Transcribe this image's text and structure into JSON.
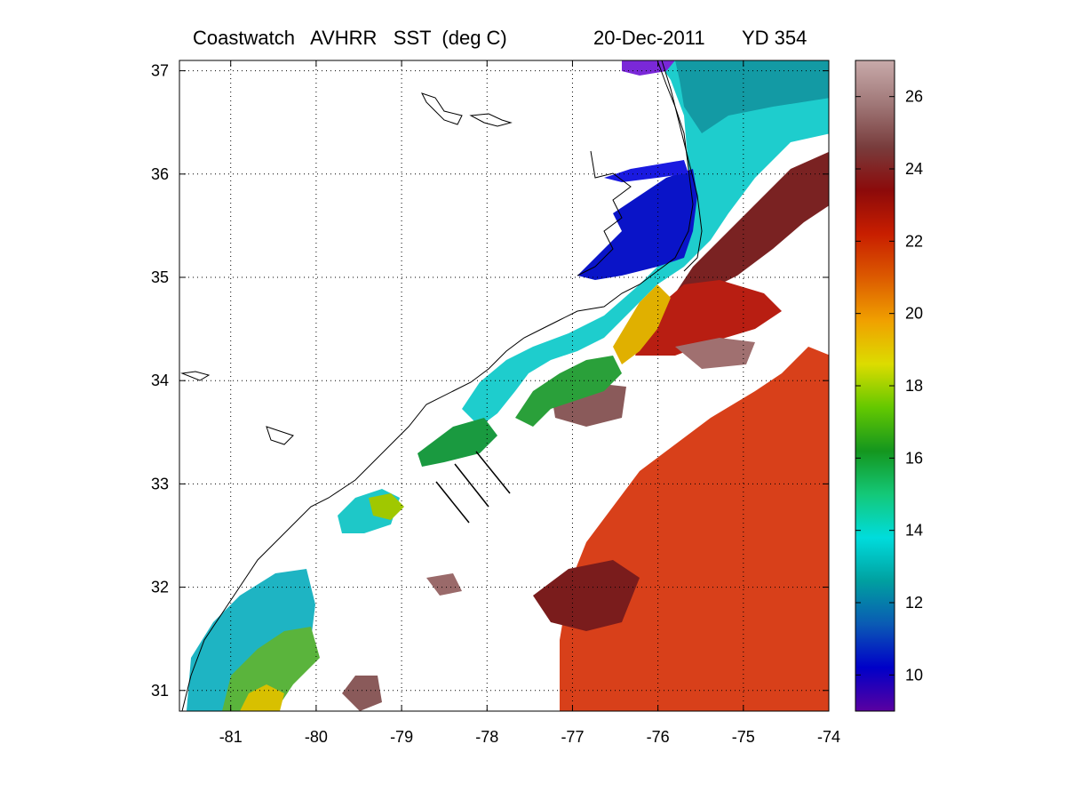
{
  "header": {
    "title": "Coastwatch   AVHRR   SST  (deg C)",
    "date": "20-Dec-2011",
    "yearday": "YD 354"
  },
  "map": {
    "lon_range": [
      -81.6,
      -74
    ],
    "lat_range": [
      30.8,
      37.1
    ],
    "lon_ticks": [
      "-81",
      "-80",
      "-79",
      "-78",
      "-77",
      "-76",
      "-75",
      "-74"
    ],
    "lat_ticks": [
      "31",
      "32",
      "33",
      "34",
      "35",
      "36",
      "37"
    ],
    "grid": "dotted"
  },
  "colorbar": {
    "range": [
      9,
      27
    ],
    "ticks": [
      "10",
      "12",
      "14",
      "16",
      "18",
      "20",
      "22",
      "24",
      "26"
    ],
    "colors": [
      "#5a00a0",
      "#0000c8",
      "#0a5ab4",
      "#00a0a0",
      "#00dcdc",
      "#14c878",
      "#14961e",
      "#64c800",
      "#dcdc00",
      "#f0a000",
      "#dc5a00",
      "#c81e00",
      "#8c0a0a",
      "#783c3c",
      "#a07878",
      "#c8aaaa"
    ]
  },
  "legend_colors": {
    "cold": "#0a14c8",
    "cool": "#1ed2d2",
    "warm": "#d23214",
    "hot": "#6e1e1e",
    "background": "#ffffff"
  }
}
